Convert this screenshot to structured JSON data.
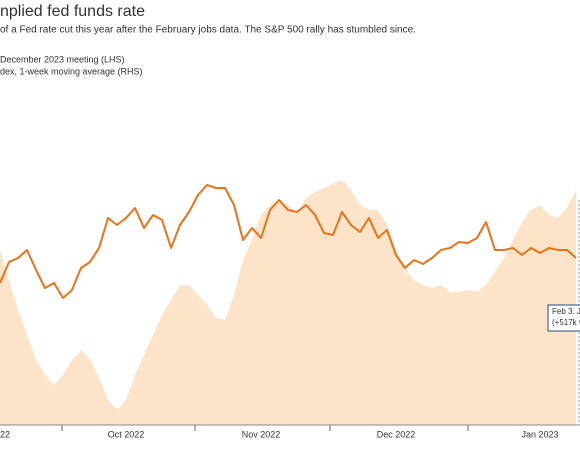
{
  "chart_data": {
    "type": "line",
    "title": "nplied fed funds rate",
    "subtitle": "of a Fed rate cut this year after the February jobs data. The S&P 500 rally has stumbled since.",
    "categories": [
      "22",
      null,
      null,
      null,
      null,
      null,
      null,
      null,
      null,
      null,
      null,
      null,
      null,
      null,
      "Oct 2022",
      null,
      null,
      null,
      null,
      null,
      null,
      null,
      null,
      null,
      null,
      null,
      null,
      null,
      null,
      "Nov 2022",
      null,
      null,
      null,
      null,
      null,
      null,
      null,
      null,
      null,
      null,
      null,
      null,
      null,
      null,
      "Dec 2022",
      null,
      null,
      null,
      null,
      null,
      null,
      null,
      null,
      null,
      null,
      null,
      null,
      null,
      null,
      null,
      "Jan 2023",
      null,
      null,
      null,
      null
    ],
    "ylim": [
      0,
      130
    ],
    "series": [
      {
        "name": "December 2023 meeting (LHS)",
        "type": "line",
        "color": "#e8731a",
        "values": [
          56.8,
          65.2,
          66.8,
          70,
          62,
          54.8,
          56.8,
          50.8,
          54,
          62.8,
          65.2,
          70.8,
          82.8,
          80,
          82.8,
          86.8,
          78.8,
          84,
          82,
          70.8,
          80,
          85.2,
          92,
          96,
          94.8,
          94.8,
          88,
          74,
          78.8,
          74.8,
          86,
          90,
          86,
          85.2,
          88,
          84,
          76.8,
          76,
          85.2,
          80,
          77.2,
          82.8,
          74.8,
          78,
          68,
          62.8,
          66,
          64.4,
          66.8,
          70,
          70.8,
          73.2,
          72.8,
          74.8,
          81.2,
          70,
          70,
          70.8,
          68,
          70.8,
          68.8,
          70.8,
          70,
          70,
          66.8
        ]
      },
      {
        "name": "dex, 1-week moving average (RHS)",
        "type": "area",
        "color": "#fde3c8",
        "values": [
          70,
          58,
          46,
          36,
          26,
          20,
          16,
          20,
          26,
          30,
          26,
          18.8,
          10,
          6,
          10,
          20,
          28,
          36,
          44,
          50,
          56,
          56,
          52,
          48,
          42.8,
          42,
          52,
          66,
          74,
          84,
          88,
          90,
          88,
          85.2,
          90.8,
          93.2,
          94.8,
          96.4,
          98,
          94,
          88,
          86,
          86,
          80,
          70,
          62,
          58,
          56,
          54.8,
          56,
          53.2,
          53.2,
          54,
          53.2,
          56,
          61.2,
          66.8,
          74,
          81.2,
          86,
          88,
          84,
          82.8,
          86.8,
          94
        ]
      }
    ],
    "annotations": [
      "Feb 3. Ja",
      "(+517k vs"
    ]
  }
}
